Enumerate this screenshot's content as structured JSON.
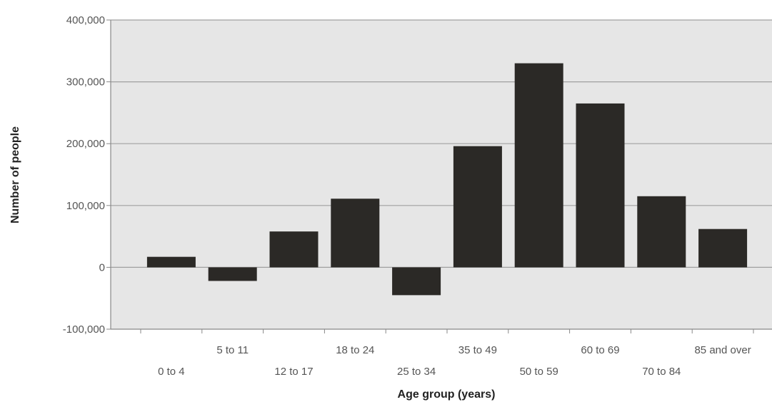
{
  "chart_data": {
    "type": "bar",
    "title": "",
    "xlabel": "Age group (years)",
    "ylabel": "Number of people",
    "categories": [
      "0 to 4",
      "5 to 11",
      "12 to 17",
      "18 to 24",
      "25 to 34",
      "35 to 49",
      "50 to 59",
      "60 to 69",
      "70 to 84",
      "85 and over"
    ],
    "values": [
      17000,
      -22000,
      58000,
      111000,
      -45000,
      196000,
      330000,
      265000,
      115000,
      62000
    ],
    "ylim": [
      -100000,
      400000
    ],
    "yticks": [
      -100000,
      0,
      100000,
      200000,
      300000,
      400000
    ],
    "ytick_labels": [
      "-100,000",
      "0",
      "100,000",
      "200,000",
      "300,000",
      "400,000"
    ],
    "grid": true,
    "legend": "none",
    "colors": {
      "bar": "#2b2926",
      "plot_background": "#e6e6e6",
      "gridline": "#a0a0a0",
      "axis": "#888888"
    }
  }
}
